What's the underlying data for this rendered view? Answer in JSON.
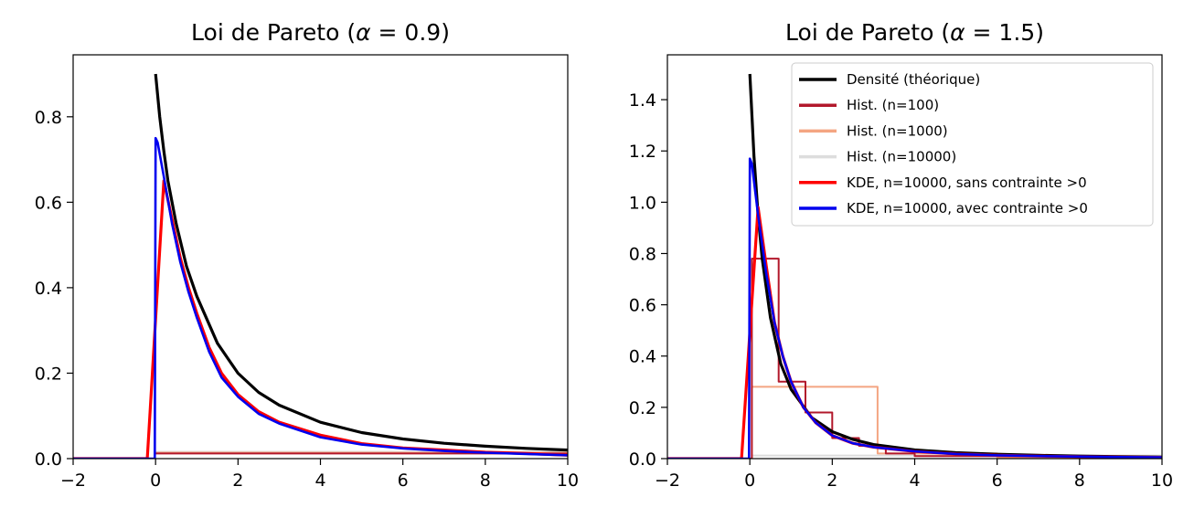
{
  "chart_data": [
    {
      "type": "line",
      "title": "Loi de Pareto (α = 0.9)",
      "title_parts": {
        "prefix": "Loi de Pareto (",
        "symbol": "α",
        "suffix": " = 0.9)"
      },
      "alpha": 0.9,
      "xlim": [
        -2,
        10
      ],
      "ylim": [
        0,
        0.945
      ],
      "xticks": [
        -2,
        0,
        2,
        4,
        6,
        8,
        10
      ],
      "yticks": [
        0.0,
        0.2,
        0.4,
        0.6,
        0.8
      ],
      "xtick_labels": [
        "−2",
        "0",
        "2",
        "4",
        "6",
        "8",
        "10"
      ],
      "ytick_labels": [
        "0.0",
        "0.2",
        "0.4",
        "0.6",
        "0.8"
      ],
      "grid": false,
      "series": [
        {
          "key": "density",
          "color": "#000000",
          "x": [
            0,
            0.1,
            0.2,
            0.3,
            0.5,
            0.75,
            1,
            1.5,
            2,
            2.5,
            3,
            4,
            5,
            6,
            7,
            8,
            9,
            10
          ],
          "y": [
            0.9,
            0.8,
            0.72,
            0.65,
            0.55,
            0.45,
            0.38,
            0.27,
            0.2,
            0.155,
            0.125,
            0.085,
            0.061,
            0.046,
            0.036,
            0.029,
            0.024,
            0.02
          ]
        },
        {
          "key": "hist_n100",
          "color": "#b2182b",
          "x": [
            0,
            10
          ],
          "y": [
            0.012,
            0.012
          ]
        },
        {
          "key": "hist_n1000",
          "color": "#f4a582",
          "x": [
            0,
            10
          ],
          "y": [
            0.014,
            0.014
          ]
        },
        {
          "key": "hist_n10000",
          "color": "#dddddd",
          "x": [
            0,
            10
          ],
          "y": [
            0.016,
            0.016
          ]
        },
        {
          "key": "kde_free",
          "color": "#ff0000",
          "x": [
            -2,
            -0.2,
            0.2,
            0.4,
            0.6,
            0.8,
            1,
            1.3,
            1.6,
            2,
            2.5,
            3,
            4,
            5,
            6,
            7,
            8,
            9,
            10
          ],
          "y": [
            0.0,
            0.0,
            0.65,
            0.56,
            0.47,
            0.4,
            0.34,
            0.26,
            0.2,
            0.15,
            0.11,
            0.085,
            0.055,
            0.035,
            0.025,
            0.02,
            0.015,
            0.012,
            0.008
          ]
        },
        {
          "key": "kde_pos",
          "color": "#0000ee",
          "x": [
            -2,
            -0.02,
            0,
            0.05,
            0.2,
            0.4,
            0.6,
            0.8,
            1,
            1.3,
            1.6,
            2,
            2.5,
            3,
            4,
            5,
            6,
            7,
            8,
            9,
            10
          ],
          "y": [
            0.0,
            0.0,
            0.75,
            0.74,
            0.66,
            0.55,
            0.46,
            0.39,
            0.33,
            0.25,
            0.19,
            0.145,
            0.105,
            0.082,
            0.05,
            0.033,
            0.024,
            0.018,
            0.014,
            0.011,
            0.008
          ]
        }
      ]
    },
    {
      "type": "line",
      "title": "Loi de Pareto (α = 1.5)",
      "title_parts": {
        "prefix": "Loi de Pareto (",
        "symbol": "α",
        "suffix": " = 1.5)"
      },
      "alpha": 1.5,
      "xlim": [
        -2,
        10
      ],
      "ylim": [
        0,
        1.575
      ],
      "xticks": [
        -2,
        0,
        2,
        4,
        6,
        8,
        10
      ],
      "yticks": [
        0.0,
        0.2,
        0.4,
        0.6,
        0.8,
        1.0,
        1.2,
        1.4
      ],
      "xtick_labels": [
        "−2",
        "0",
        "2",
        "4",
        "6",
        "8",
        "10"
      ],
      "ytick_labels": [
        "0.0",
        "0.2",
        "0.4",
        "0.6",
        "0.8",
        "1.0",
        "1.2",
        "1.4"
      ],
      "grid": false,
      "legend_position": "upper right",
      "legend": [
        {
          "key": "density",
          "label": "Densité (théorique)",
          "color": "#000000"
        },
        {
          "key": "hist_n100",
          "label": "Hist. (n=100)",
          "color": "#b2182b"
        },
        {
          "key": "hist_n1000",
          "label": "Hist. (n=1000)",
          "color": "#f4a582"
        },
        {
          "key": "hist_n10000",
          "label": "Hist. (n=10000)",
          "color": "#dddddd"
        },
        {
          "key": "kde_free",
          "label": "KDE, n=10000, sans contrainte >0",
          "color": "#ff0000"
        },
        {
          "key": "kde_pos",
          "label": "KDE, n=10000, avec contrainte >0",
          "color": "#0000ee"
        }
      ],
      "series": [
        {
          "key": "density",
          "color": "#000000",
          "x": [
            0,
            0.1,
            0.2,
            0.3,
            0.5,
            0.75,
            1,
            1.5,
            2,
            2.5,
            3,
            4,
            5,
            6,
            7,
            8,
            9,
            10
          ],
          "y": [
            1.5,
            1.18,
            0.95,
            0.78,
            0.55,
            0.37,
            0.27,
            0.16,
            0.105,
            0.075,
            0.055,
            0.034,
            0.023,
            0.017,
            0.013,
            0.01,
            0.008,
            0.006
          ]
        },
        {
          "key": "hist_n100",
          "color": "#b2182b",
          "step": true,
          "x": [
            0,
            0.05,
            0.05,
            0.7,
            0.7,
            1.35,
            1.35,
            2.0,
            2.0,
            2.65,
            2.65,
            3.3,
            3.3,
            4.0,
            4.0,
            8.7
          ],
          "y": [
            0.0,
            0.0,
            0.78,
            0.78,
            0.3,
            0.3,
            0.18,
            0.18,
            0.08,
            0.08,
            0.05,
            0.05,
            0.02,
            0.02,
            0.01,
            0.01
          ]
        },
        {
          "key": "hist_n1000",
          "color": "#f4a582",
          "step": true,
          "x": [
            0,
            0.05,
            0.05,
            3.1,
            3.1,
            6.0,
            6.0,
            10
          ],
          "y": [
            0.0,
            0.0,
            0.28,
            0.28,
            0.02,
            0.02,
            0.005,
            0.005
          ]
        },
        {
          "key": "hist_n10000",
          "color": "#dddddd",
          "step": true,
          "x": [
            0,
            0.05,
            0.05,
            10
          ],
          "y": [
            0.0,
            0.0,
            0.012,
            0.012
          ]
        },
        {
          "key": "kde_free",
          "color": "#ff0000",
          "x": [
            -2,
            -0.2,
            0.2,
            0.4,
            0.6,
            0.8,
            1,
            1.3,
            1.6,
            2,
            2.5,
            3,
            4,
            5,
            6,
            7,
            8,
            9,
            10
          ],
          "y": [
            0.0,
            0.0,
            0.98,
            0.75,
            0.53,
            0.4,
            0.3,
            0.2,
            0.14,
            0.09,
            0.06,
            0.045,
            0.028,
            0.018,
            0.013,
            0.01,
            0.008,
            0.006,
            0.005
          ]
        },
        {
          "key": "kde_pos",
          "color": "#0000ee",
          "x": [
            -2,
            -0.02,
            0,
            0.05,
            0.2,
            0.4,
            0.6,
            0.8,
            1,
            1.3,
            1.6,
            2,
            2.5,
            3,
            4,
            5,
            6,
            7,
            8,
            9,
            10
          ],
          "y": [
            0.0,
            0.0,
            1.17,
            1.15,
            0.95,
            0.72,
            0.53,
            0.4,
            0.3,
            0.2,
            0.14,
            0.09,
            0.06,
            0.045,
            0.028,
            0.018,
            0.013,
            0.01,
            0.008,
            0.006,
            0.005
          ]
        }
      ]
    }
  ]
}
